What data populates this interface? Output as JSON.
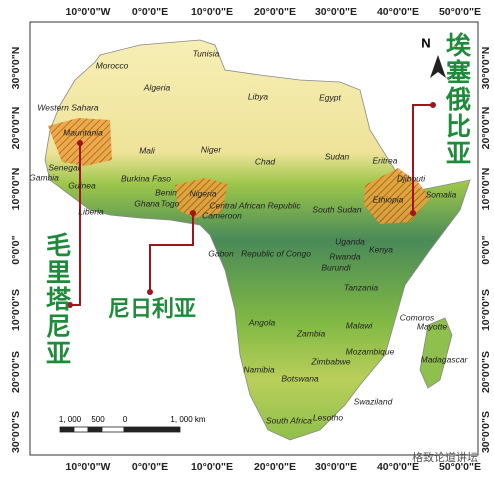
{
  "map": {
    "longitude_labels": [
      "10°0'0\"W",
      "0°0'0\"E",
      "10°0'0\"E",
      "20°0'0\"E",
      "30°0'0\"E",
      "40°0'0\"E",
      "50°0'0\"E"
    ],
    "latitude_labels": [
      "30°0'0\"N",
      "20°0'0\"N",
      "10°0'0\"N",
      "0°0'0\"",
      "10°0'0\"S",
      "20°0'0\"S",
      "30°0'0\"S"
    ],
    "countries": [
      "Morocco",
      "Tunisia",
      "Algeria",
      "Libya",
      "Egypt",
      "Western Sahara",
      "Mauritania",
      "Mali",
      "Niger",
      "Chad",
      "Sudan",
      "Eritrea",
      "Senegal",
      "Gambia",
      "Burkina Faso",
      "Djibouti",
      "Guinea",
      "Benin",
      "Nigeria",
      "Ethiopia",
      "Somalia",
      "Ghana",
      "Togo",
      "Liberia",
      "Central African Republic",
      "South Sudan",
      "Cameroon",
      "Gabon",
      "Republic of Congo",
      "Uganda",
      "Kenya",
      "Rwanda",
      "Burundi",
      "Tanzania",
      "Comoros",
      "Mayotte",
      "Angola",
      "Zambia",
      "Malawi",
      "Mozambique",
      "Zimbabwe",
      "Madagascar",
      "Namibia",
      "Botswana",
      "Swaziland",
      "South Africa",
      "Lesotho"
    ],
    "callouts": [
      "埃塞俄比亚",
      "毛里塔尼亚",
      "尼日利亚"
    ],
    "north": "N",
    "scale_labels": [
      "1, 000",
      "500",
      "0",
      "1, 000 km"
    ],
    "watermark": "格致论道讲坛"
  }
}
